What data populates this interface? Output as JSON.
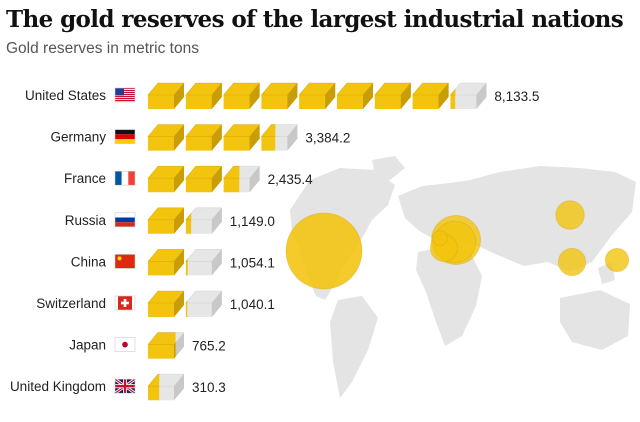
{
  "title": "The gold reserves of the largest industrial nations",
  "subtitle": "Gold reserves in metric tons",
  "colors": {
    "gold": "#f2c40e",
    "gold_dark": "#c99d05",
    "silver": "#e6e6e6",
    "silver_dark": "#c8c8c8",
    "map": "#e4e4e4"
  },
  "chart_data": {
    "type": "bar",
    "unit": "metric tons",
    "categories": [
      "United States",
      "Germany",
      "France",
      "Russia",
      "China",
      "Switzerland",
      "Japan",
      "United Kingdom"
    ],
    "values": [
      8133.5,
      3384.2,
      2435.4,
      1149.0,
      1054.1,
      1040.1,
      765.2,
      310.3
    ],
    "value_labels": [
      "8,133.5",
      "3,384.2",
      "2,435.4",
      "1,149.0",
      "1,054.1",
      "1,040.1",
      "765.2",
      "310.3"
    ],
    "tons_per_bar": 1000,
    "flags": [
      "us-flag-icon",
      "germany-flag-icon",
      "france-flag-icon",
      "russia-flag-icon",
      "china-flag-icon",
      "switzerland-flag-icon",
      "japan-flag-icon",
      "uk-flag-icon"
    ]
  }
}
